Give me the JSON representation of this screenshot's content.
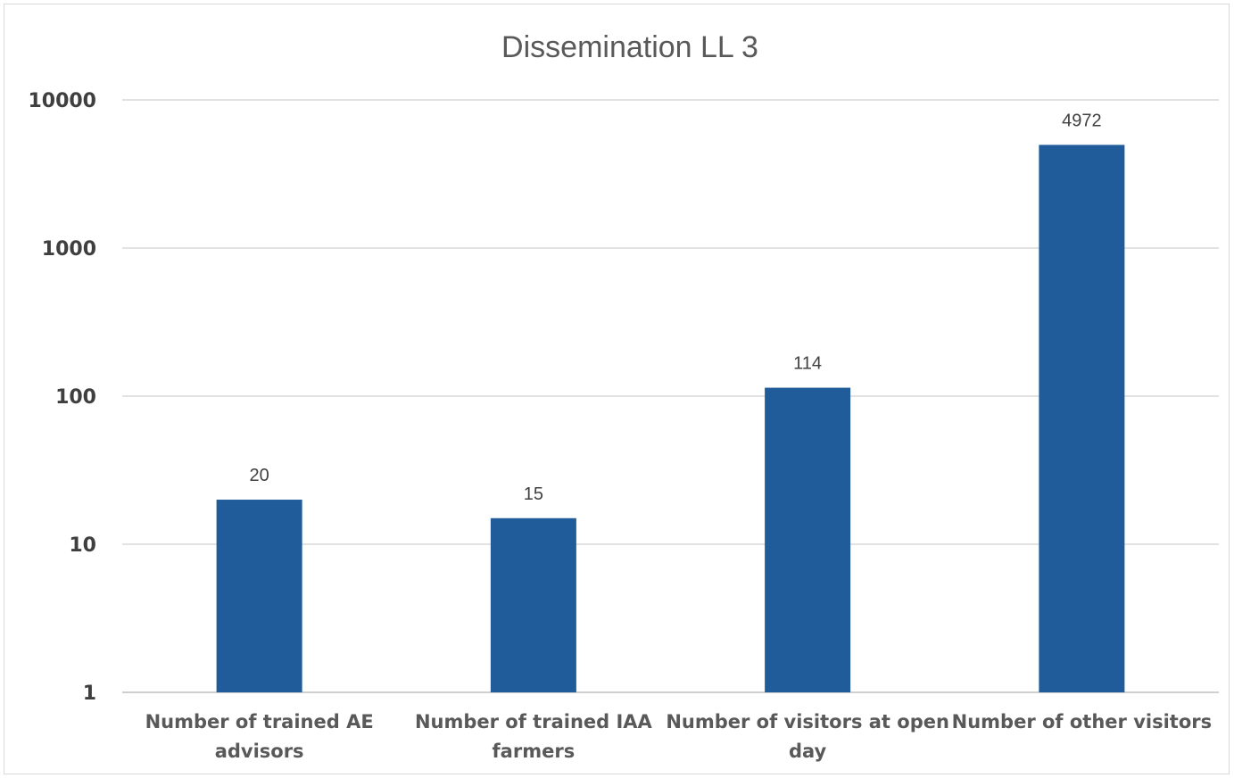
{
  "chart_data": {
    "type": "bar",
    "title": "Dissemination LL 3",
    "xlabel": "",
    "ylabel": "",
    "y_scale": "log10",
    "ylim": [
      1,
      10000
    ],
    "y_ticks": [
      "1",
      "10",
      "100",
      "1000",
      "10000"
    ],
    "grid": true,
    "legend": "none",
    "bar_color": "#1f5c99",
    "categories": [
      [
        "Number of trained AE",
        "advisors"
      ],
      [
        "Number of trained IAA",
        "farmers"
      ],
      [
        "Number of visitors at open",
        "day"
      ],
      [
        "Number of other visitors"
      ]
    ],
    "values": [
      20,
      15,
      114,
      4972
    ],
    "data_labels": [
      "20",
      "15",
      "114",
      "4972"
    ]
  }
}
